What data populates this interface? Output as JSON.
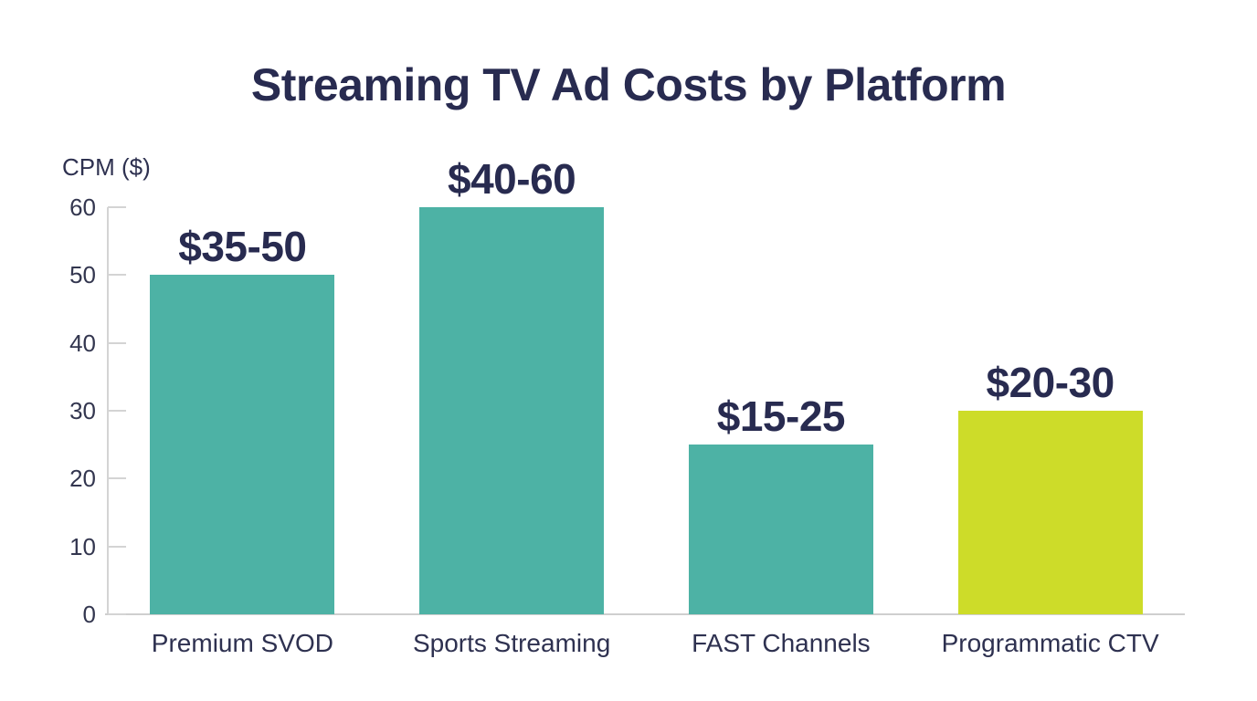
{
  "title": "Streaming TV Ad Costs by Platform",
  "chart_data": {
    "type": "bar",
    "title": "Streaming TV Ad Costs by Platform",
    "ylabel": "CPM ($)",
    "xlabel": "",
    "ylim": [
      0,
      60
    ],
    "yticks": [
      "0",
      "10",
      "20",
      "30",
      "40",
      "50",
      "60"
    ],
    "grid": false,
    "legend": "none",
    "categories": [
      "Premium SVOD",
      "Sports Streaming",
      "FAST Channels",
      "Programmatic CTV"
    ],
    "values": [
      50,
      60,
      25,
      30
    ],
    "bars": [
      {
        "category": "Premium SVOD",
        "range_label": "$35-50",
        "range_low": 35,
        "range_high": 50,
        "value": 50,
        "color": "#4db2a5"
      },
      {
        "category": "Sports Streaming",
        "range_label": "$40-60",
        "range_low": 40,
        "range_high": 60,
        "value": 60,
        "color": "#4db2a5"
      },
      {
        "category": "FAST Channels",
        "range_label": "$15-25",
        "range_low": 15,
        "range_high": 25,
        "value": 25,
        "color": "#4db2a5"
      },
      {
        "category": "Programmatic CTV",
        "range_label": "$20-30",
        "range_low": 20,
        "range_high": 30,
        "value": 30,
        "color": "#cddc29"
      }
    ],
    "colors": {
      "teal": "#4db2a5",
      "lime": "#cddc29",
      "text_navy": "#282b50",
      "axis_gray": "#d4d4d4",
      "background": "#ffffff"
    }
  }
}
